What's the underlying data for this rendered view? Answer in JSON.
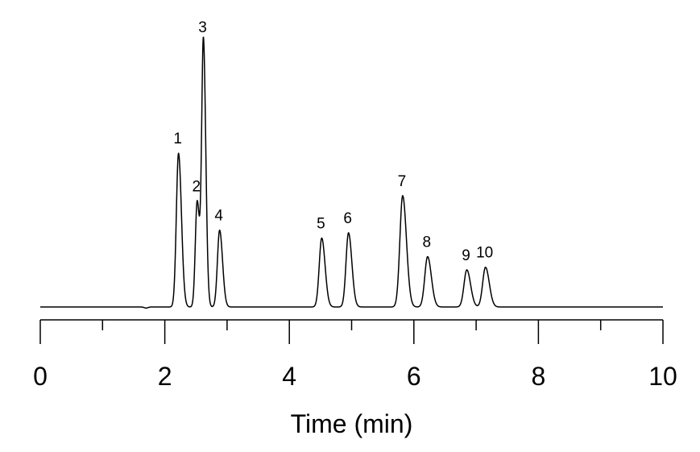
{
  "chart_data": {
    "type": "line",
    "title": "",
    "xlabel": "Time (min)",
    "ylabel": "",
    "xlim": [
      0,
      10
    ],
    "xticks": [
      0,
      2,
      4,
      6,
      8,
      10
    ],
    "minor_step": 1,
    "grid": false,
    "y_axis_shown": false,
    "line_color": "#000000",
    "peaks": [
      {
        "label": "1",
        "x": 2.22,
        "y": 0.58,
        "width": 0.035
      },
      {
        "label": "2",
        "x": 2.52,
        "y": 0.4,
        "width": 0.03
      },
      {
        "label": "3",
        "x": 2.62,
        "y": 1.0,
        "width": 0.028
      },
      {
        "label": "4",
        "x": 2.88,
        "y": 0.29,
        "width": 0.035
      },
      {
        "label": "5",
        "x": 4.52,
        "y": 0.26,
        "width": 0.04
      },
      {
        "label": "6",
        "x": 4.95,
        "y": 0.28,
        "width": 0.04
      },
      {
        "label": "7",
        "x": 5.82,
        "y": 0.42,
        "width": 0.045
      },
      {
        "label": "8",
        "x": 6.22,
        "y": 0.19,
        "width": 0.045
      },
      {
        "label": "9",
        "x": 6.85,
        "y": 0.14,
        "width": 0.045
      },
      {
        "label": "10",
        "x": 7.15,
        "y": 0.15,
        "width": 0.045
      }
    ]
  }
}
